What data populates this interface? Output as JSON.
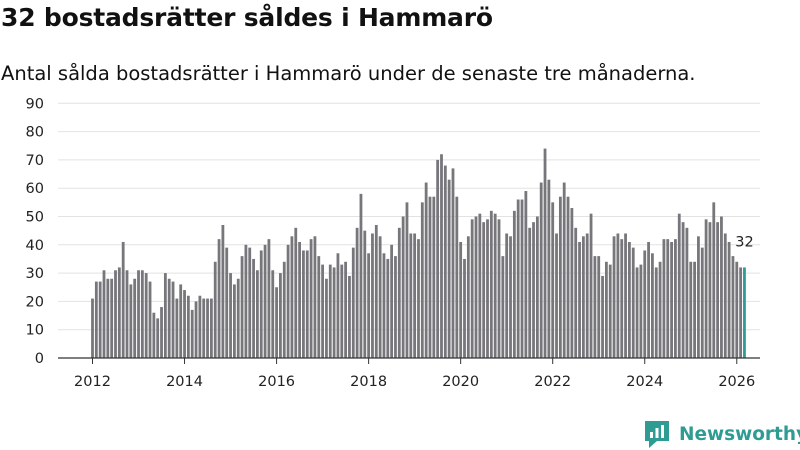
{
  "header": {
    "title": "32 bostadsrätter såldes i Hammarö",
    "subtitle": "Antal sålda bostadsrätter i Hammarö under de senaste tre månaderna."
  },
  "brand": {
    "name": "Newsworthy",
    "icon": "newsworthy-logo-icon"
  },
  "colors": {
    "bar": "#77767b",
    "highlight": "#2e9c93",
    "grid": "#e2e2e2",
    "axis": "#333333",
    "text": "#111111"
  },
  "chart_data": {
    "type": "bar",
    "title": "32 bostadsrätter såldes i Hammarö",
    "subtitle": "Antal sålda bostadsrätter i Hammarö under de senaste tre månaderna.",
    "xlabel": "",
    "ylabel": "",
    "ylim": [
      0,
      90
    ],
    "yticks": [
      0,
      10,
      20,
      30,
      40,
      50,
      60,
      70,
      80,
      90
    ],
    "xticks": [
      "2012",
      "2014",
      "2016",
      "2018",
      "2020",
      "2022",
      "2024",
      "2026"
    ],
    "start": "2012-01",
    "frequency": "monthly",
    "grid": true,
    "legend": "none",
    "highlight_last": true,
    "last_label": "32",
    "values": [
      21,
      27,
      27,
      31,
      28,
      28,
      31,
      32,
      41,
      31,
      26,
      28,
      31,
      31,
      30,
      27,
      16,
      14,
      18,
      30,
      28,
      27,
      21,
      26,
      24,
      22,
      17,
      20,
      22,
      21,
      21,
      21,
      34,
      42,
      47,
      39,
      30,
      26,
      28,
      36,
      40,
      39,
      35,
      31,
      38,
      40,
      42,
      31,
      25,
      30,
      34,
      40,
      43,
      46,
      41,
      38,
      38,
      42,
      43,
      36,
      33,
      28,
      33,
      32,
      37,
      33,
      34,
      29,
      39,
      46,
      58,
      45,
      37,
      44,
      47,
      43,
      37,
      35,
      40,
      36,
      46,
      50,
      55,
      44,
      44,
      42,
      55,
      62,
      57,
      57,
      70,
      72,
      68,
      63,
      67,
      57,
      41,
      35,
      43,
      49,
      50,
      51,
      48,
      49,
      52,
      51,
      49,
      36,
      44,
      43,
      52,
      56,
      56,
      59,
      46,
      48,
      50,
      62,
      74,
      63,
      55,
      44,
      57,
      62,
      57,
      53,
      46,
      41,
      43,
      44,
      51,
      36,
      36,
      29,
      34,
      33,
      43,
      44,
      42,
      44,
      41,
      39,
      32,
      33,
      38,
      41,
      37,
      32,
      34,
      42,
      42,
      41,
      42,
      51,
      48,
      46,
      34,
      34,
      43,
      39,
      49,
      48,
      55,
      48,
      50,
      44,
      41,
      36,
      34,
      32,
      32
    ]
  }
}
